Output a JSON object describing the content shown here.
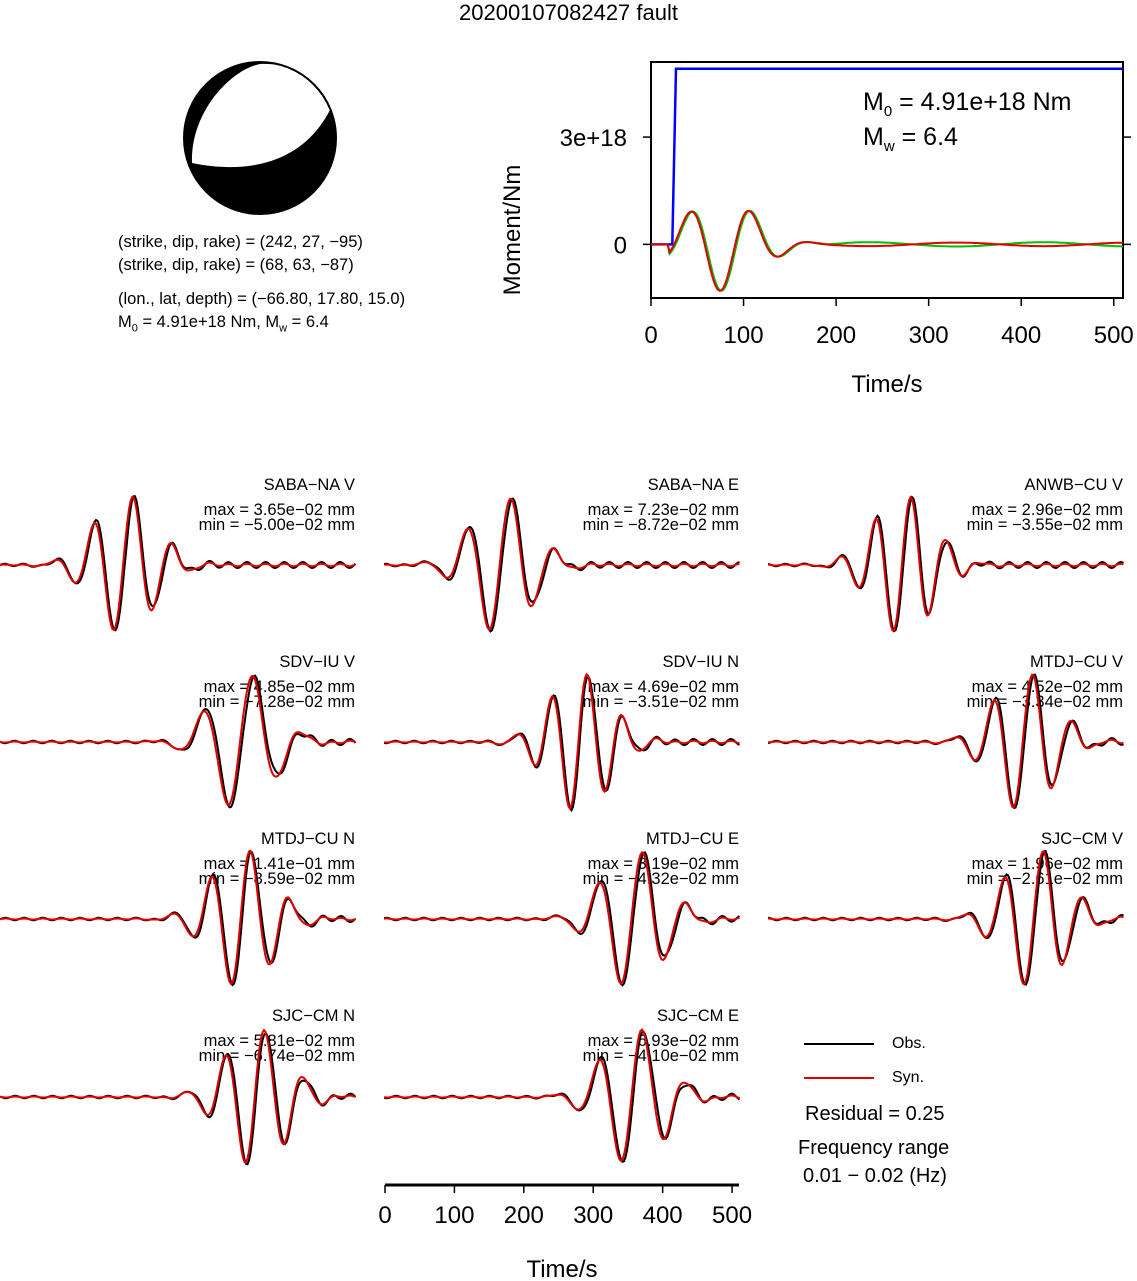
{
  "title": "20200107082427 fault",
  "mechanism": {
    "line1": "(strike, dip, rake) = (242, 27, −95)",
    "line2": "(strike, dip, rake) = (68, 63, −87)",
    "line3": "(lon., lat, depth) = (−66.80, 17.80, 15.0)",
    "line4_m0": "M",
    "line4_sub": "0",
    "line4_rest": " = 4.91e+18 Nm, M",
    "line4_sub2": "w",
    "line4_end": " = 6.4"
  },
  "moment_plot": {
    "ylabel": "Moment/Nm",
    "xlabel": "Time/s",
    "xticks": [
      "0",
      "100",
      "200",
      "300",
      "400",
      "500"
    ],
    "yticks": [
      "0",
      "3e+18"
    ],
    "annot_m0": " = 4.91e+18 Nm",
    "annot_mw": " = 6.4",
    "annot_M": "M",
    "annot_sub0": "0",
    "annot_subw": "w",
    "colors": {
      "cumulative": "#0000ff",
      "rate_a": "#00c000",
      "rate_b": "#e00000"
    }
  },
  "chart_data": {
    "type": "line",
    "x_axis": {
      "label": "Time/s",
      "range": [
        0,
        510
      ],
      "ticks": [
        0,
        100,
        200,
        300,
        400,
        500
      ]
    },
    "moment": {
      "cumulative_step_time": 27,
      "cumulative_level": 4.91e+18,
      "y_range": [
        -1.5e+18,
        5.1e+18
      ]
    },
    "stations": [
      {
        "name": "SABA−NA V",
        "max": "max = 3.65e−02 mm",
        "min": "min = −5.00e−02 mm"
      },
      {
        "name": "SABA−NA E",
        "max": "max = 7.23e−02 mm",
        "min": "min = −8.72e−02 mm"
      },
      {
        "name": "ANWB−CU V",
        "max": "max = 2.96e−02 mm",
        "min": "min = −3.55e−02 mm"
      },
      {
        "name": "SDV−IU V",
        "max": "max = 4.85e−02 mm",
        "min": "min = −7.28e−02 mm"
      },
      {
        "name": "SDV−IU N",
        "max": "max = 4.69e−02 mm",
        "min": "min = −3.51e−02 mm"
      },
      {
        "name": "MTDJ−CU V",
        "max": "max = 4.52e−02 mm",
        "min": "min = −3.34e−02 mm"
      },
      {
        "name": "MTDJ−CU N",
        "max": "max = 1.41e−01 mm",
        "min": "min = −8.59e−02 mm"
      },
      {
        "name": "MTDJ−CU E",
        "max": "max = 3.19e−02 mm",
        "min": "min = −4.32e−02 mm"
      },
      {
        "name": "SJC−CM V",
        "max": "max = 1.96e−02 mm",
        "min": "min = −2.61e−02 mm"
      },
      {
        "name": "SJC−CM N",
        "max": "max = 5.81e−02 mm",
        "min": "min = −6.74e−02 mm"
      },
      {
        "name": "SJC−CM E",
        "max": "max = 6.93e−02 mm",
        "min": "min = −4.10e−02 mm"
      }
    ]
  },
  "legend": {
    "obs": "Obs.",
    "syn": "Syn.",
    "obs_color": "#000000",
    "syn_color": "#e00000"
  },
  "residual": "Residual = 0.25",
  "freq_title": "Frequency range",
  "freq_value": "0.01 − 0.02 (Hz)",
  "bottom_axis": {
    "label": "Time/s",
    "ticks": [
      "0",
      "100",
      "200",
      "300",
      "400",
      "500"
    ]
  }
}
